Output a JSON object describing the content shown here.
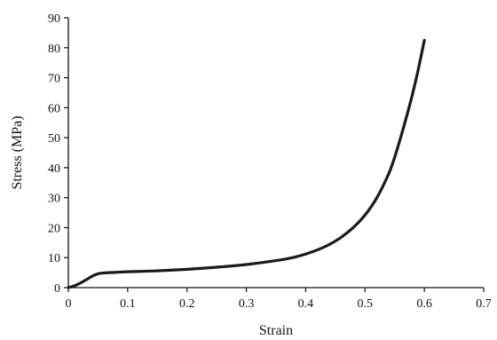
{
  "chart_data": {
    "type": "line",
    "title": "",
    "xlabel": "Strain",
    "ylabel": "Stress (MPa)",
    "xlim": [
      0,
      0.7
    ],
    "ylim": [
      0,
      90
    ],
    "x_ticks": [
      0,
      0.1,
      0.2,
      0.3,
      0.4,
      0.5,
      0.6,
      0.7
    ],
    "x_tick_labels": [
      "0",
      "0.1",
      "0.2",
      "0.3",
      "0.4",
      "0.5",
      "0.6",
      "0.7"
    ],
    "y_ticks": [
      0,
      10,
      20,
      30,
      40,
      50,
      60,
      70,
      80,
      90
    ],
    "y_tick_labels": [
      "0",
      "10",
      "20",
      "30",
      "40",
      "50",
      "60",
      "70",
      "80",
      "90"
    ],
    "grid": false,
    "legend": "none",
    "line_color": "#1a1a1a",
    "series": [
      {
        "x": [
          0,
          0.01,
          0.02,
          0.03,
          0.04,
          0.05,
          0.06,
          0.08,
          0.1,
          0.15,
          0.2,
          0.25,
          0.3,
          0.35,
          0.38,
          0.4,
          0.42,
          0.44,
          0.46,
          0.48,
          0.5,
          0.52,
          0.54,
          0.55,
          0.56,
          0.57,
          0.58,
          0.59,
          0.6
        ],
        "y": [
          0,
          0.6,
          1.5,
          2.6,
          3.8,
          4.6,
          4.9,
          5.1,
          5.3,
          5.6,
          6.1,
          6.8,
          7.7,
          9.0,
          10.1,
          11.2,
          12.6,
          14.4,
          16.8,
          20.0,
          24.2,
          30.0,
          38.0,
          43.5,
          50.0,
          57.0,
          64.5,
          73.0,
          82.5
        ]
      }
    ]
  }
}
